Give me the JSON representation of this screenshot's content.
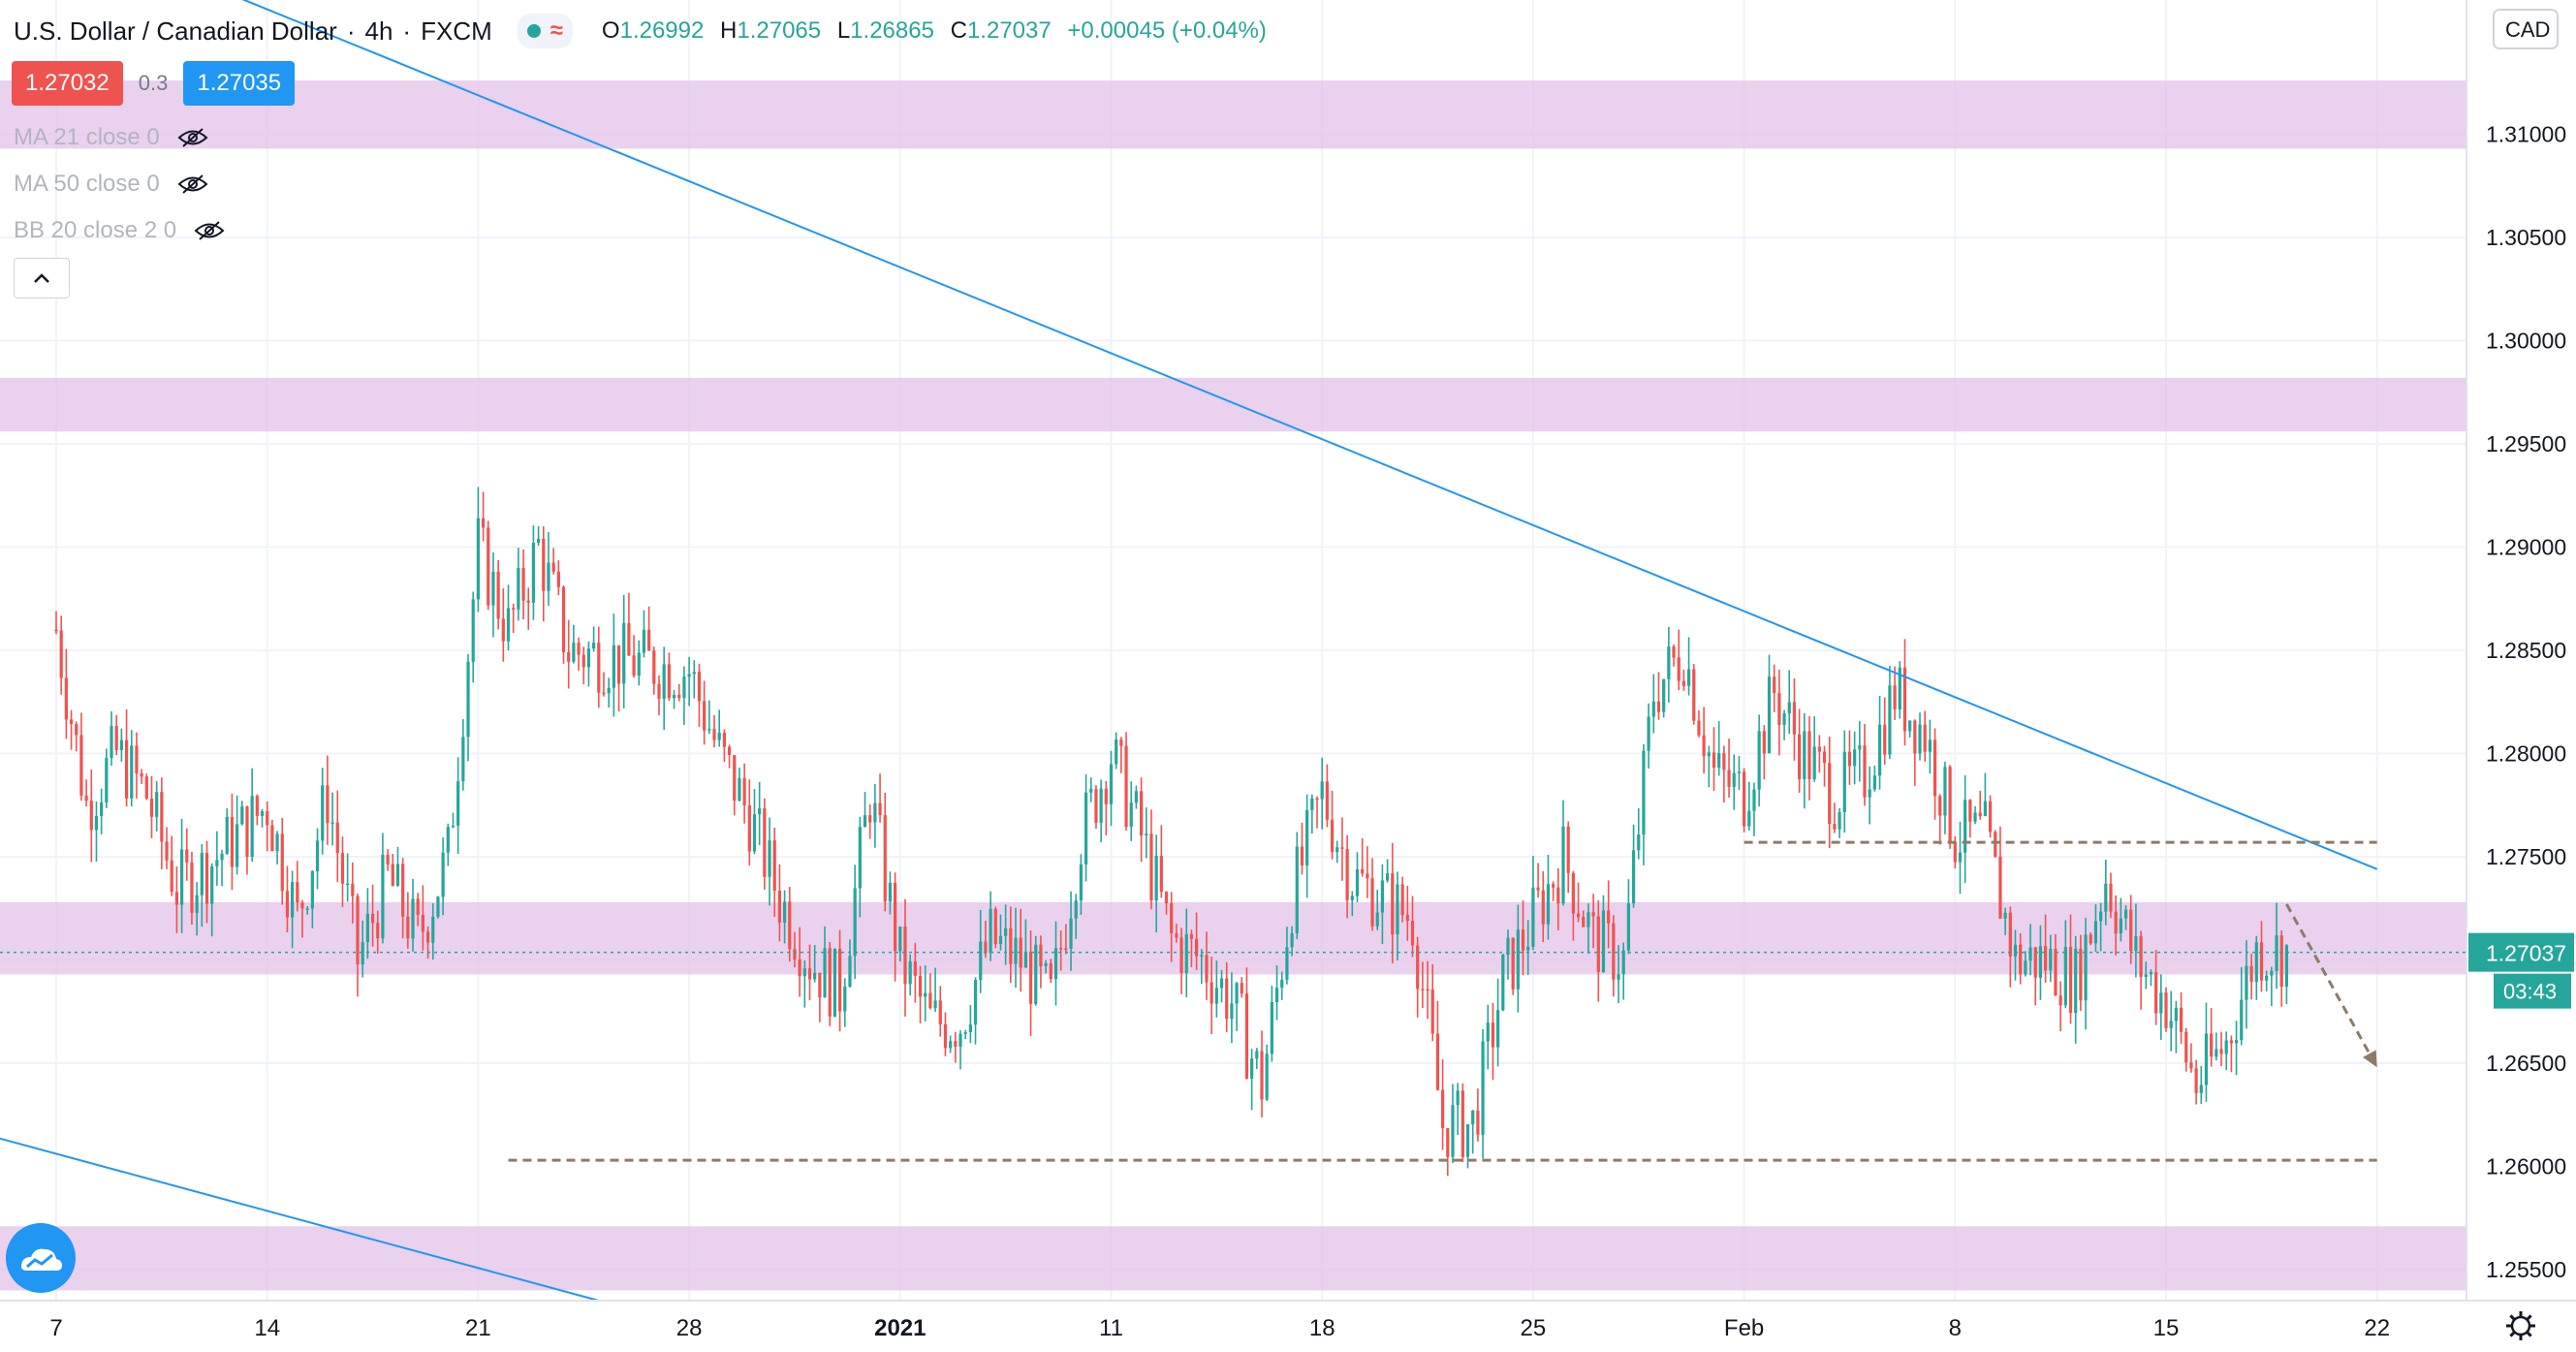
{
  "header": {
    "symbol_name": "U.S. Dollar / Canadian Dollar",
    "interval": "4h",
    "exchange": "FXCM",
    "ohlc": {
      "o_label": "O",
      "o": "1.26992",
      "h_label": "H",
      "h": "1.27065",
      "l_label": "L",
      "l": "1.26865",
      "c_label": "C",
      "c": "1.27037",
      "change": "+0.00045 (+0.04%)"
    }
  },
  "trade_boxes": {
    "sell": "1.27032",
    "spread": "0.3",
    "buy": "1.27035"
  },
  "indicators": [
    {
      "label": "MA 21 close 0"
    },
    {
      "label": "MA 50 close 0"
    },
    {
      "label": "BB 20 close 2 0"
    }
  ],
  "price_axis": {
    "currency": "CAD",
    "current_price": "1.27037",
    "countdown": "03:43",
    "ticks": [
      "1.31000",
      "1.30500",
      "1.30000",
      "1.29500",
      "1.29000",
      "1.28500",
      "1.28000",
      "1.27500",
      "1.26500",
      "1.26000",
      "1.25500"
    ]
  },
  "time_axis": {
    "ticks": [
      "7",
      "14",
      "21",
      "28",
      "2021",
      "11",
      "18",
      "25",
      "Feb",
      "8",
      "15",
      "22"
    ]
  },
  "colors": {
    "up": "#26a69a",
    "down": "#ef5350",
    "zone": "#e1bee7",
    "trendline": "#2196f3",
    "annotation": "#8d7b68"
  },
  "chart_data": {
    "type": "candlestick",
    "title": "U.S. Dollar / Canadian Dollar",
    "ylim": [
      1.2535,
      1.3165
    ],
    "x_start": "2020-12-07",
    "y_ticks": [
      1.255,
      1.265,
      1.27,
      1.275,
      1.28,
      1.285,
      1.29,
      1.295,
      1.3,
      1.305,
      1.31
    ],
    "zones": [
      {
        "y_from": 1.3093,
        "y_to": 1.3126
      },
      {
        "y_from": 1.2956,
        "y_to": 1.2982
      },
      {
        "y_from": 1.2693,
        "y_to": 1.2728
      },
      {
        "y_from": 1.254,
        "y_to": 1.2571
      }
    ],
    "trendlines": [
      {
        "from": [
          "2020-12-04",
          1.322
        ],
        "to": [
          "2021-02-22",
          1.2744
        ]
      },
      {
        "from": [
          "2020-12-04",
          1.2618
        ],
        "to": [
          "2020-12-25",
          1.2535
        ]
      }
    ],
    "horizontal_dashed": [
      {
        "y": 1.2757,
        "from": "2021-02-01",
        "to": "2021-02-22"
      },
      {
        "y": 1.2603,
        "from": "2020-12-22",
        "to": "2021-02-22"
      }
    ],
    "arrow": {
      "from": [
        "2021-02-19",
        1.2727
      ],
      "to": [
        "2021-02-22",
        1.2648
      ]
    },
    "path": [
      [
        "2020-12-07",
        1.286
      ],
      [
        "2020-12-08",
        1.2775
      ],
      [
        "2020-12-09",
        1.28
      ],
      [
        "2020-12-10",
        1.278
      ],
      [
        "2020-12-11",
        1.2735
      ],
      [
        "2020-12-12",
        1.2745
      ],
      [
        "2020-12-14",
        1.2775
      ],
      [
        "2020-12-15",
        1.272
      ],
      [
        "2020-12-16",
        1.278
      ],
      [
        "2020-12-17",
        1.27
      ],
      [
        "2020-12-18",
        1.274
      ],
      [
        "2020-12-19",
        1.271
      ],
      [
        "2020-12-20",
        1.275
      ],
      [
        "2020-12-21",
        1.29
      ],
      [
        "2020-12-22",
        1.286
      ],
      [
        "2020-12-23",
        1.29
      ],
      [
        "2020-12-24",
        1.285
      ],
      [
        "2020-12-26",
        1.2845
      ],
      [
        "2020-12-28",
        1.284
      ],
      [
        "2020-12-29",
        1.28
      ],
      [
        "2020-12-30",
        1.277
      ],
      [
        "2020-12-31",
        1.273
      ],
      [
        "2021-01-01",
        1.27
      ],
      [
        "2021-01-02",
        1.2685
      ],
      [
        "2021-01-03",
        1.278
      ],
      [
        "2021-01-04",
        1.27
      ],
      [
        "2021-01-05",
        1.267
      ],
      [
        "2021-01-06",
        1.267
      ],
      [
        "2021-01-07",
        1.271
      ],
      [
        "2021-01-08",
        1.27
      ],
      [
        "2021-01-09",
        1.268
      ],
      [
        "2021-01-10",
        1.276
      ],
      [
        "2021-01-11",
        1.28
      ],
      [
        "2021-01-12",
        1.276
      ],
      [
        "2021-01-13",
        1.271
      ],
      [
        "2021-01-14",
        1.27
      ],
      [
        "2021-01-15",
        1.268
      ],
      [
        "2021-01-16",
        1.264
      ],
      [
        "2021-01-17",
        1.273
      ],
      [
        "2021-01-18",
        1.278
      ],
      [
        "2021-01-19",
        1.274
      ],
      [
        "2021-01-20",
        1.273
      ],
      [
        "2021-01-21",
        1.272
      ],
      [
        "2021-01-22",
        1.262
      ],
      [
        "2021-01-23",
        1.262
      ],
      [
        "2021-01-24",
        1.269
      ],
      [
        "2021-01-25",
        1.272
      ],
      [
        "2021-01-26",
        1.275
      ],
      [
        "2021-01-27",
        1.271
      ],
      [
        "2021-01-28",
        1.27
      ],
      [
        "2021-01-29",
        1.283
      ],
      [
        "2021-01-30",
        1.285
      ],
      [
        "2021-01-31",
        1.279
      ],
      [
        "2021-02-01",
        1.278
      ],
      [
        "2021-02-02",
        1.283
      ],
      [
        "2021-02-03",
        1.28
      ],
      [
        "2021-02-04",
        1.278
      ],
      [
        "2021-02-05",
        1.279
      ],
      [
        "2021-02-06",
        1.283
      ],
      [
        "2021-02-07",
        1.281
      ],
      [
        "2021-02-08",
        1.276
      ],
      [
        "2021-02-09",
        1.276
      ],
      [
        "2021-02-10",
        1.27
      ],
      [
        "2021-02-11",
        1.27
      ],
      [
        "2021-02-12",
        1.269
      ],
      [
        "2021-02-13",
        1.274
      ],
      [
        "2021-02-14",
        1.27
      ],
      [
        "2021-02-15",
        1.268
      ],
      [
        "2021-02-16",
        1.264
      ],
      [
        "2021-02-17",
        1.266
      ],
      [
        "2021-02-18",
        1.2705
      ],
      [
        "2021-02-19",
        1.2704
      ]
    ]
  }
}
